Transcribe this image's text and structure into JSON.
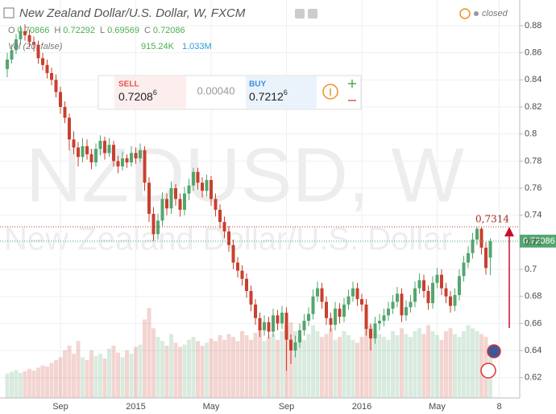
{
  "chart_data": {
    "type": "candlestick",
    "title": "New Zealand Dollar/U.S. Dollar, W, FXCM",
    "status": "closed",
    "watermark": "NZDUSD, W",
    "watermark_subtitle": "New Zealand Dollar/U.S. Dollar",
    "ohlc_legend": [
      {
        "key": "O",
        "value": "0.70866"
      },
      {
        "key": "H",
        "value": "0.72292"
      },
      {
        "key": "L",
        "value": "0.69569"
      },
      {
        "key": "C",
        "value": "0.72086"
      }
    ],
    "volume_legend": {
      "name": "Vol (20, false)",
      "value": "915.24K",
      "ma": "1.033M"
    },
    "trade_panel": {
      "sell_label": "SELL",
      "sell_big": "0.7208",
      "sell_small": "6",
      "spread": "0.00040",
      "buy_label": "BUY",
      "buy_big": "0.7212",
      "buy_small": "6"
    },
    "last_price": 0.72086,
    "annotation": {
      "value": 0.7314,
      "label": "0,7314"
    },
    "up_color": "#53a66f",
    "down_color": "#c8402f",
    "ylim": [
      0.605,
      0.899
    ],
    "yticks": [
      0.62,
      0.64,
      0.66,
      0.68,
      0.7,
      0.72,
      0.74,
      0.76,
      0.78,
      0.8,
      0.82,
      0.84,
      0.86,
      0.88
    ],
    "grid": true,
    "categories": [
      null,
      null,
      null,
      null,
      null,
      null,
      null,
      null,
      null,
      null,
      null,
      null,
      "Sep",
      null,
      null,
      null,
      null,
      null,
      null,
      null,
      null,
      null,
      null,
      null,
      null,
      null,
      null,
      null,
      null,
      "2015",
      null,
      null,
      null,
      null,
      null,
      null,
      null,
      null,
      null,
      null,
      null,
      null,
      null,
      null,
      null,
      null,
      "May",
      null,
      null,
      null,
      null,
      null,
      null,
      null,
      null,
      null,
      null,
      null,
      null,
      null,
      null,
      null,
      null,
      "Sep",
      null,
      null,
      null,
      null,
      null,
      null,
      null,
      null,
      null,
      null,
      null,
      null,
      null,
      null,
      null,
      null,
      "2016",
      null,
      null,
      null,
      null,
      null,
      null,
      null,
      null,
      null,
      null,
      null,
      null,
      null,
      null,
      null,
      null,
      "May",
      null,
      null,
      null,
      null,
      null,
      null,
      null,
      null,
      null,
      null,
      null,
      null,
      null,
      "8"
    ],
    "ohlc": [
      [
        0.848,
        0.86,
        0.842,
        0.855
      ],
      [
        0.855,
        0.866,
        0.852,
        0.862
      ],
      [
        0.862,
        0.874,
        0.859,
        0.87
      ],
      [
        0.87,
        0.88,
        0.866,
        0.876
      ],
      [
        0.876,
        0.881,
        0.869,
        0.873
      ],
      [
        0.873,
        0.877,
        0.864,
        0.868
      ],
      [
        0.868,
        0.872,
        0.861,
        0.866
      ],
      [
        0.866,
        0.869,
        0.852,
        0.856
      ],
      [
        0.856,
        0.86,
        0.847,
        0.851
      ],
      [
        0.851,
        0.855,
        0.841,
        0.845
      ],
      [
        0.845,
        0.849,
        0.836,
        0.84
      ],
      [
        0.84,
        0.844,
        0.827,
        0.831
      ],
      [
        0.831,
        0.835,
        0.815,
        0.82
      ],
      [
        0.82,
        0.824,
        0.808,
        0.812
      ],
      [
        0.812,
        0.815,
        0.788,
        0.796
      ],
      [
        0.796,
        0.802,
        0.785,
        0.79
      ],
      [
        0.79,
        0.794,
        0.776,
        0.783
      ],
      [
        0.783,
        0.797,
        0.779,
        0.791
      ],
      [
        0.791,
        0.796,
        0.781,
        0.785
      ],
      [
        0.785,
        0.789,
        0.774,
        0.779
      ],
      [
        0.779,
        0.793,
        0.776,
        0.789
      ],
      [
        0.789,
        0.799,
        0.784,
        0.795
      ],
      [
        0.795,
        0.798,
        0.781,
        0.786
      ],
      [
        0.786,
        0.797,
        0.783,
        0.792
      ],
      [
        0.792,
        0.795,
        0.776,
        0.78
      ],
      [
        0.78,
        0.784,
        0.771,
        0.776
      ],
      [
        0.776,
        0.787,
        0.773,
        0.782
      ],
      [
        0.782,
        0.785,
        0.775,
        0.779
      ],
      [
        0.779,
        0.791,
        0.776,
        0.786
      ],
      [
        0.786,
        0.79,
        0.778,
        0.782
      ],
      [
        0.782,
        0.793,
        0.779,
        0.788
      ],
      [
        0.788,
        0.791,
        0.758,
        0.764
      ],
      [
        0.764,
        0.768,
        0.735,
        0.741
      ],
      [
        0.741,
        0.746,
        0.721,
        0.726
      ],
      [
        0.726,
        0.741,
        0.722,
        0.736
      ],
      [
        0.736,
        0.757,
        0.732,
        0.752
      ],
      [
        0.752,
        0.756,
        0.74,
        0.745
      ],
      [
        0.745,
        0.765,
        0.741,
        0.76
      ],
      [
        0.76,
        0.763,
        0.747,
        0.752
      ],
      [
        0.752,
        0.756,
        0.739,
        0.744
      ],
      [
        0.744,
        0.761,
        0.74,
        0.756
      ],
      [
        0.756,
        0.767,
        0.751,
        0.762
      ],
      [
        0.762,
        0.775,
        0.758,
        0.772
      ],
      [
        0.772,
        0.775,
        0.759,
        0.764
      ],
      [
        0.764,
        0.768,
        0.753,
        0.758
      ],
      [
        0.758,
        0.77,
        0.754,
        0.766
      ],
      [
        0.766,
        0.769,
        0.747,
        0.752
      ],
      [
        0.752,
        0.756,
        0.739,
        0.744
      ],
      [
        0.744,
        0.748,
        0.73,
        0.735
      ],
      [
        0.735,
        0.739,
        0.723,
        0.728
      ],
      [
        0.728,
        0.732,
        0.713,
        0.718
      ],
      [
        0.718,
        0.722,
        0.7,
        0.705
      ],
      [
        0.705,
        0.709,
        0.694,
        0.699
      ],
      [
        0.699,
        0.703,
        0.688,
        0.693
      ],
      [
        0.693,
        0.697,
        0.679,
        0.684
      ],
      [
        0.684,
        0.688,
        0.669,
        0.674
      ],
      [
        0.674,
        0.678,
        0.659,
        0.664
      ],
      [
        0.664,
        0.668,
        0.65,
        0.655
      ],
      [
        0.655,
        0.666,
        0.651,
        0.661
      ],
      [
        0.661,
        0.665,
        0.649,
        0.654
      ],
      [
        0.654,
        0.671,
        0.65,
        0.666
      ],
      [
        0.666,
        0.67,
        0.655,
        0.66
      ],
      [
        0.66,
        0.673,
        0.656,
        0.668
      ],
      [
        0.668,
        0.672,
        0.625,
        0.648
      ],
      [
        0.648,
        0.652,
        0.63,
        0.64
      ],
      [
        0.64,
        0.651,
        0.635,
        0.646
      ],
      [
        0.646,
        0.66,
        0.642,
        0.655
      ],
      [
        0.655,
        0.667,
        0.651,
        0.662
      ],
      [
        0.662,
        0.672,
        0.658,
        0.667
      ],
      [
        0.667,
        0.685,
        0.663,
        0.68
      ],
      [
        0.68,
        0.691,
        0.676,
        0.686
      ],
      [
        0.686,
        0.69,
        0.671,
        0.676
      ],
      [
        0.676,
        0.68,
        0.659,
        0.664
      ],
      [
        0.664,
        0.668,
        0.654,
        0.659
      ],
      [
        0.659,
        0.676,
        0.655,
        0.671
      ],
      [
        0.671,
        0.675,
        0.66,
        0.665
      ],
      [
        0.665,
        0.679,
        0.661,
        0.674
      ],
      [
        0.674,
        0.685,
        0.67,
        0.68
      ],
      [
        0.68,
        0.691,
        0.676,
        0.686
      ],
      [
        0.686,
        0.69,
        0.673,
        0.678
      ],
      [
        0.678,
        0.682,
        0.669,
        0.674
      ],
      [
        0.674,
        0.678,
        0.651,
        0.656
      ],
      [
        0.656,
        0.66,
        0.64,
        0.649
      ],
      [
        0.649,
        0.665,
        0.645,
        0.66
      ],
      [
        0.66,
        0.667,
        0.655,
        0.662
      ],
      [
        0.662,
        0.671,
        0.658,
        0.666
      ],
      [
        0.666,
        0.676,
        0.662,
        0.671
      ],
      [
        0.671,
        0.681,
        0.667,
        0.676
      ],
      [
        0.676,
        0.687,
        0.672,
        0.682
      ],
      [
        0.682,
        0.686,
        0.661,
        0.666
      ],
      [
        0.666,
        0.677,
        0.662,
        0.672
      ],
      [
        0.672,
        0.681,
        0.668,
        0.676
      ],
      [
        0.676,
        0.691,
        0.672,
        0.686
      ],
      [
        0.686,
        0.697,
        0.682,
        0.692
      ],
      [
        0.692,
        0.696,
        0.679,
        0.684
      ],
      [
        0.684,
        0.688,
        0.67,
        0.675
      ],
      [
        0.675,
        0.695,
        0.671,
        0.69
      ],
      [
        0.69,
        0.701,
        0.686,
        0.696
      ],
      [
        0.696,
        0.7,
        0.681,
        0.686
      ],
      [
        0.686,
        0.69,
        0.675,
        0.68
      ],
      [
        0.68,
        0.684,
        0.668,
        0.673
      ],
      [
        0.673,
        0.686,
        0.669,
        0.681
      ],
      [
        0.681,
        0.7,
        0.677,
        0.695
      ],
      [
        0.695,
        0.71,
        0.691,
        0.705
      ],
      [
        0.705,
        0.717,
        0.701,
        0.712
      ],
      [
        0.712,
        0.727,
        0.708,
        0.722
      ],
      [
        0.722,
        0.7314,
        0.718,
        0.73
      ],
      [
        0.73,
        0.731,
        0.711,
        0.716
      ],
      [
        0.716,
        0.72,
        0.696,
        0.701
      ],
      [
        0.70866,
        0.72292,
        0.69569,
        0.72086
      ],
      null,
      null
    ],
    "volume": [
      420,
      450,
      480,
      430,
      460,
      500,
      470,
      520,
      560,
      540,
      600,
      650,
      700,
      820,
      900,
      760,
      980,
      700,
      650,
      820,
      720,
      760,
      680,
      850,
      900,
      780,
      700,
      820,
      760,
      880,
      920,
      1350,
      1550,
      1200,
      1050,
      980,
      900,
      1100,
      950,
      880,
      920,
      1000,
      1050,
      980,
      900,
      950,
      1020,
      980,
      1080,
      1000,
      1100,
      1050,
      980,
      1150,
      1080,
      1000,
      1120,
      1200,
      980,
      1050,
      1100,
      1000,
      1150,
      1250,
      1300,
      1150,
      1050,
      1000,
      1100,
      1250,
      1150,
      1050,
      1100,
      1200,
      1000,
      1050,
      1150,
      1080,
      1000,
      950,
      1050,
      1200,
      1250,
      1150,
      1100,
      1050,
      1000,
      1150,
      1080,
      1200,
      1100,
      1050,
      1150,
      1200,
      1100,
      1250,
      1150,
      1080,
      1000,
      1150,
      1200,
      1100,
      1050,
      1150,
      1250,
      1200,
      1150,
      1100,
      1050,
      915.24,
      null,
      null
    ]
  }
}
